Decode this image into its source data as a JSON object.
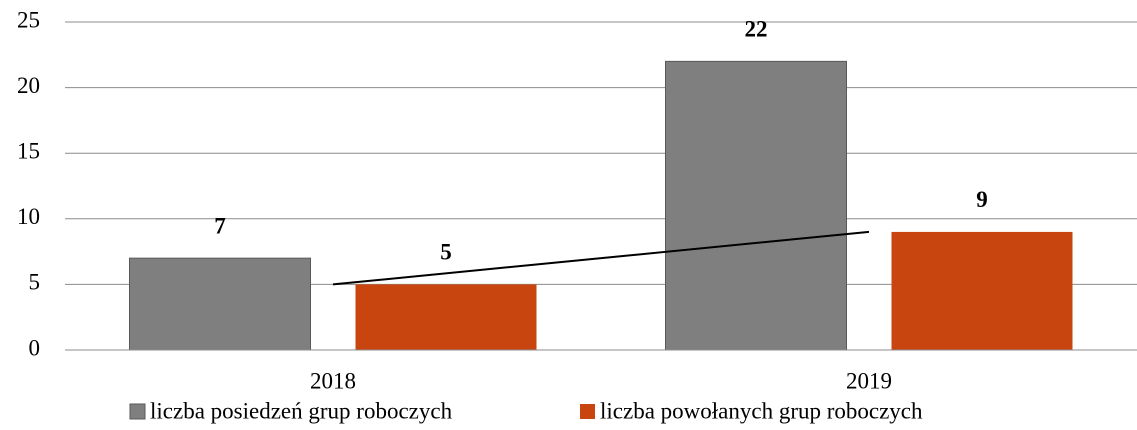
{
  "chart_data": {
    "type": "bar",
    "categories": [
      "2018",
      "2019"
    ],
    "series": [
      {
        "name": "liczba posiedzeń grup roboczych",
        "color": "#7f7f7f",
        "values": [
          7,
          22
        ]
      },
      {
        "name": "liczba powołanych grup roboczych",
        "color": "#c9450f",
        "values": [
          5,
          9
        ]
      }
    ],
    "ylim": [
      0,
      25
    ],
    "yticks": [
      0,
      5,
      10,
      15,
      20,
      25
    ],
    "grid": true,
    "legend": "bottom"
  }
}
